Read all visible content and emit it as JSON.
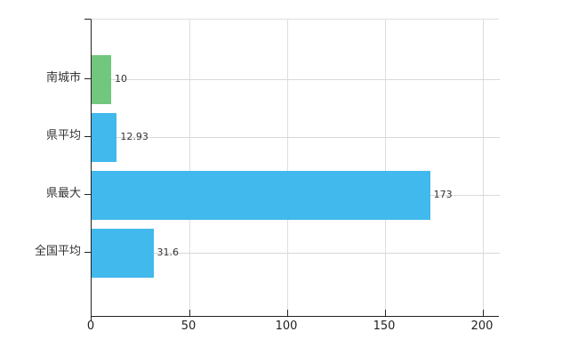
{
  "chart_data": {
    "type": "bar",
    "orientation": "horizontal",
    "title": "",
    "categories": [
      "南城市",
      "県平均",
      "県最大",
      "全国平均"
    ],
    "values": [
      10,
      12.93,
      173,
      31.6
    ],
    "value_labels": [
      "10",
      "12.93",
      "173",
      "31.6"
    ],
    "bar_colors": [
      "#71c77d",
      "#41b9ec",
      "#41b9ec",
      "#41b9ec"
    ],
    "x_ticks": [
      0,
      50,
      100,
      150,
      200
    ],
    "x_tick_labels": [
      "0",
      "50",
      "100",
      "150",
      "200"
    ],
    "xlim": [
      0,
      208
    ],
    "grid": true,
    "legend_position": "none",
    "axis_color": "#222222",
    "grid_color": "#dddddd",
    "label_color": "#333333"
  }
}
